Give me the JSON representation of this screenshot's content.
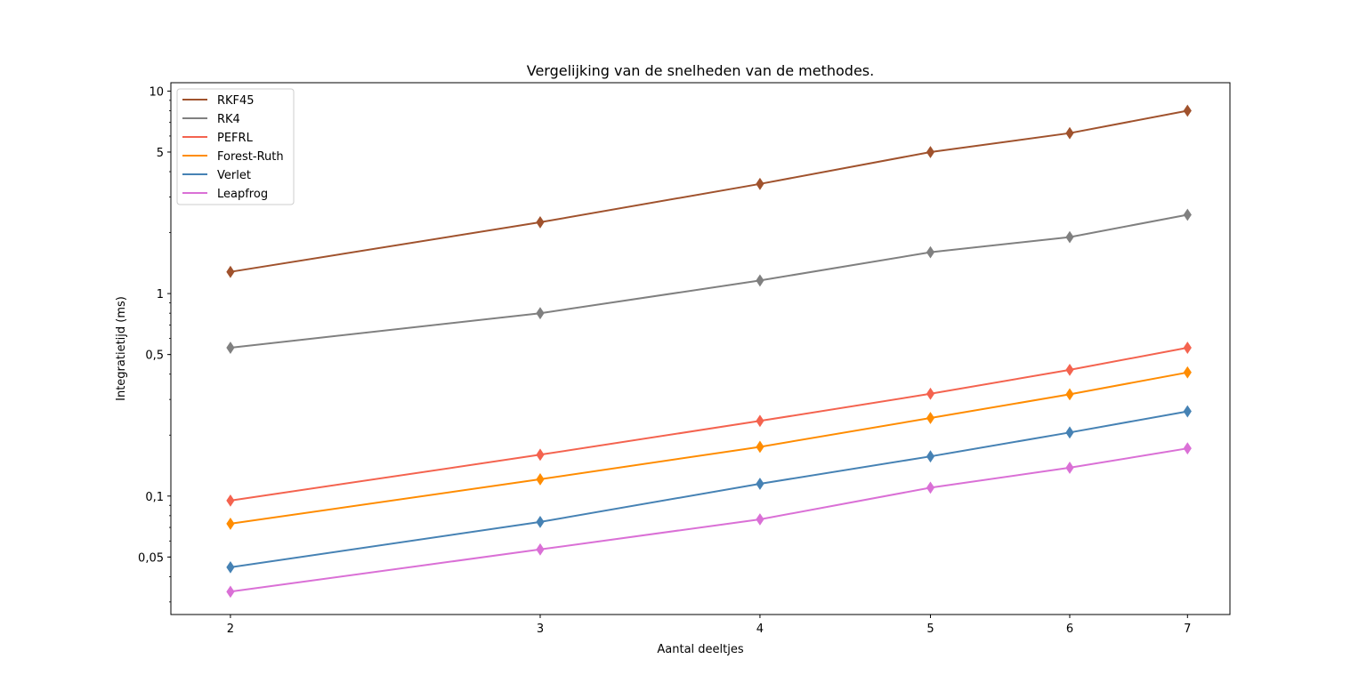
{
  "chart_data": {
    "type": "line",
    "title": "Vergelijking van de snelheden van de methodes.",
    "xlabel": "Aantal deeltjes",
    "ylabel": "Integratietijd (ms)",
    "x_scale": "log",
    "y_scale": "log",
    "xlim": [
      1.85,
      7.4
    ],
    "ylim": [
      0.026,
      11
    ],
    "x": [
      2,
      3,
      4,
      5,
      6,
      7
    ],
    "x_ticks": [
      2,
      3,
      4,
      5,
      6,
      7
    ],
    "x_tick_labels": [
      "2",
      "3",
      "4",
      "5",
      "6",
      "7"
    ],
    "y_ticks": [
      0.05,
      0.1,
      0.5,
      1,
      5,
      10
    ],
    "y_tick_labels": [
      "0,05",
      "0,1",
      "0,5",
      "1",
      "5",
      "10"
    ],
    "marker": "thin-diamond",
    "legend_position": "upper-left",
    "grid": false,
    "series": [
      {
        "name": "RKF45",
        "color": "#a0522d",
        "values": [
          1.28,
          2.25,
          3.48,
          5.0,
          6.2,
          8.0
        ]
      },
      {
        "name": "RK4",
        "color": "#808080",
        "values": [
          0.54,
          0.8,
          1.16,
          1.6,
          1.9,
          2.45
        ]
      },
      {
        "name": "PEFRL",
        "color": "#f4634f",
        "values": [
          0.095,
          0.16,
          0.235,
          0.32,
          0.42,
          0.54
        ]
      },
      {
        "name": "Forest-Ruth",
        "color": "#ff8c00",
        "values": [
          0.073,
          0.121,
          0.175,
          0.243,
          0.318,
          0.408
        ]
      },
      {
        "name": "Verlet",
        "color": "#4682b4",
        "values": [
          0.0445,
          0.0745,
          0.115,
          0.157,
          0.206,
          0.262
        ]
      },
      {
        "name": "Leapfrog",
        "color": "#da70d6",
        "values": [
          0.0337,
          0.0545,
          0.0767,
          0.11,
          0.138,
          0.172
        ]
      }
    ]
  }
}
